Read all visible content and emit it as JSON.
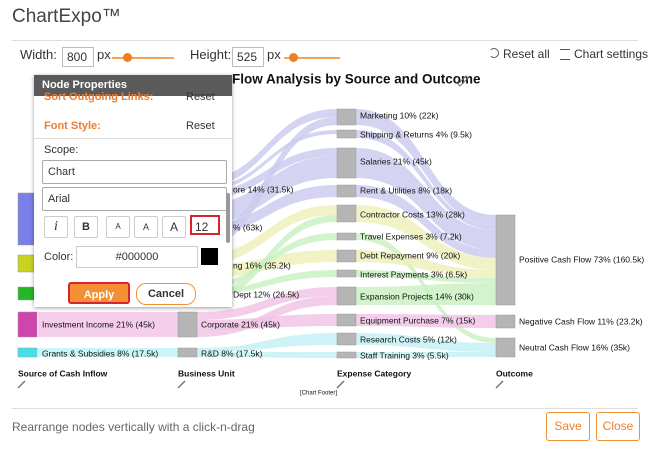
{
  "header": {
    "title": "ChartExpo™"
  },
  "toolbar": {
    "width_label": "Width:",
    "width_value": "800",
    "width_unit": "px",
    "height_label": "Height:",
    "height_value": "525",
    "height_unit": "px",
    "reset_all": "Reset all",
    "chart_settings": "Chart settings"
  },
  "panel": {
    "title": "Node Properties",
    "sort_label": "Sort Outgoing Links:",
    "sort_reset": "Reset",
    "font_style": "Font Style:",
    "font_reset": "Reset",
    "scope_label": "Scope:",
    "scope_value": "Chart",
    "font_value": "Arial",
    "buttons": [
      "i",
      "B",
      "A",
      "A",
      "A"
    ],
    "size_value": "12",
    "color_label": "Color:",
    "color_value": "#000000",
    "apply": "Apply",
    "cancel": "Cancel"
  },
  "chart": {
    "title": "Flow Analysis by Source and Outcome",
    "footer": "[Chart Footer]",
    "columns": [
      {
        "label": "Source of Cash Inflow",
        "nodes": [
          "Investment Income 21% (45k)",
          "Grants & Subsidies 8% (17.5k)"
        ]
      },
      {
        "label": "Business Unit",
        "nodes": [
          "ore 14% (31.5k)",
          "% (63k)",
          "ng 16% (35.2k)",
          "Dept 12% (26.5k)",
          "Corporate 21% (45k)",
          "R&D 8% (17.5k)"
        ]
      },
      {
        "label": "Expense Category",
        "nodes": [
          "Marketing 10% (22k)",
          "Shipping & Returns 4% (9.5k)",
          "Salaries 21% (45k)",
          "Rent & Utilities 8% (18k)",
          "Contractor Costs 13% (28k)",
          "Travel Expenses 3% (7.2k)",
          "Debt Repayment 9% (20k)",
          "Interest Payments 3% (6.5k)",
          "Expansion Projects 14% (30k)",
          "Equipment Purchase 7% (15k)",
          "Research Costs 5% (12k)",
          "Staff Training 3% (5.5k)"
        ]
      },
      {
        "label": "Outcome",
        "nodes": [
          "Positive Cash Flow 73% (160.5k)",
          "Negative Cash Flow 11% (23.2k)",
          "Neutral Cash Flow 16% (35k)"
        ]
      }
    ]
  },
  "footer": {
    "hint": "Rearrange nodes vertically with a click-n-drag",
    "save": "Save",
    "close": "Close"
  }
}
